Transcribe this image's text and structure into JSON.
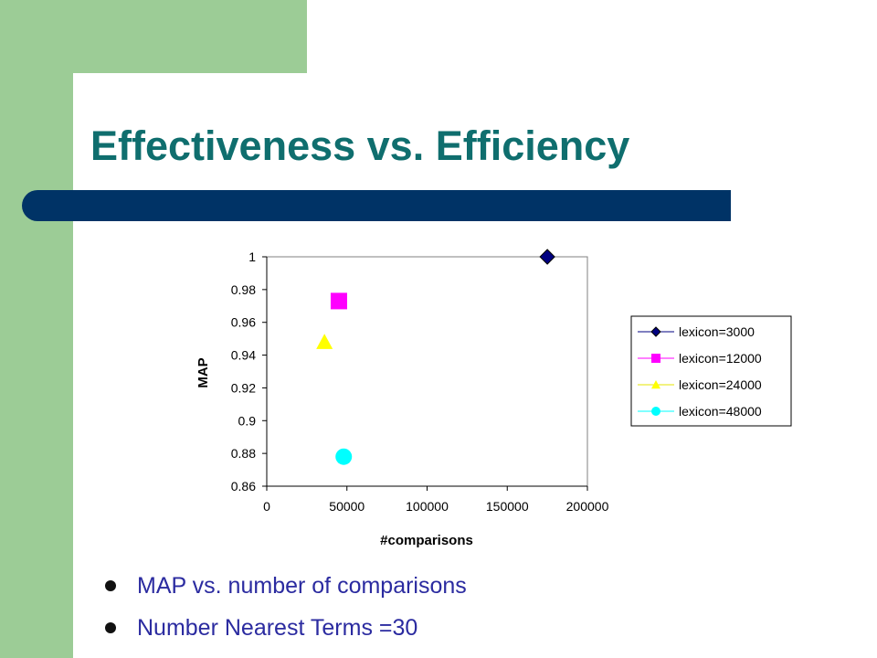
{
  "slide": {
    "title": "Effectiveness vs. Efficiency",
    "bullets": [
      "MAP vs. number of comparisons",
      "Number Nearest Terms =30"
    ]
  },
  "colors": {
    "background_green": "#9ccc96",
    "title_text": "#0f6e6e",
    "title_bar": "#003366",
    "bullet_text": "#2b2ba0"
  },
  "chart_data": {
    "type": "scatter",
    "title": "",
    "xlabel": "#comparisons",
    "ylabel": "MAP",
    "xlim": [
      0,
      200000
    ],
    "ylim": [
      0.86,
      1
    ],
    "xticks": [
      0,
      50000,
      100000,
      150000,
      200000
    ],
    "yticks": [
      0.86,
      0.88,
      0.9,
      0.92,
      0.94,
      0.96,
      0.98,
      1
    ],
    "xtick_labels": [
      "0",
      "50000",
      "100000",
      "150000",
      "200000"
    ],
    "ytick_labels": [
      "0.86",
      "0.88",
      "0.9",
      "0.92",
      "0.94",
      "0.96",
      "0.98",
      "1"
    ],
    "grid": false,
    "legend_position": "right",
    "series": [
      {
        "name": "lexicon=3000",
        "marker": "diamond",
        "color": "#000080",
        "x": [
          175000
        ],
        "y": [
          1.0
        ]
      },
      {
        "name": "lexicon=12000",
        "marker": "square",
        "color": "#ff00ff",
        "x": [
          45000
        ],
        "y": [
          0.973
        ]
      },
      {
        "name": "lexicon=24000",
        "marker": "triangle",
        "color": "#ffff00",
        "x": [
          36000
        ],
        "y": [
          0.948
        ]
      },
      {
        "name": "lexicon=48000",
        "marker": "circle",
        "color": "#00ffff",
        "x": [
          48000
        ],
        "y": [
          0.878
        ]
      }
    ]
  }
}
